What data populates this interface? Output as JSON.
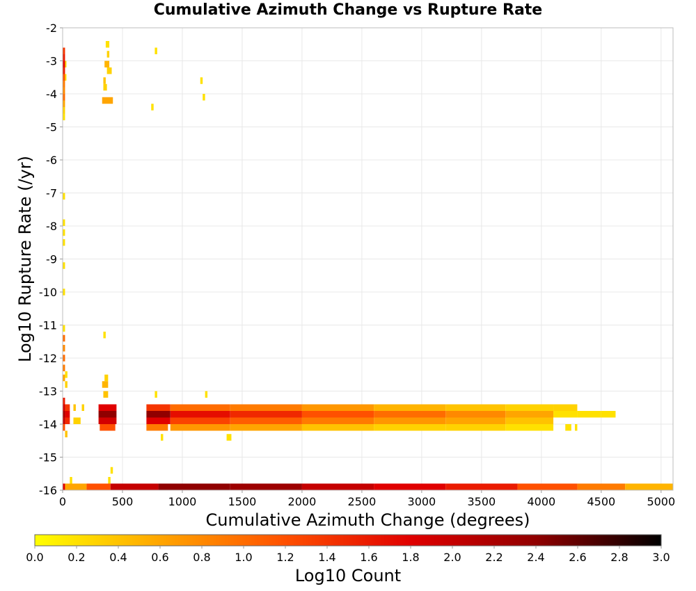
{
  "chart_data": {
    "type": "heatmap",
    "title": "Cumulative Azimuth Change vs Rupture Rate",
    "xlabel": "Cumulative Azimuth Change (degrees)",
    "ylabel": "Log10 Rupture Rate (/yr)",
    "xlim": [
      0,
      5100
    ],
    "ylim": [
      -16,
      -2
    ],
    "x_ticks": [
      "0",
      "500",
      "1000",
      "1500",
      "2000",
      "2500",
      "3000",
      "3500",
      "4000",
      "4500",
      "5000"
    ],
    "y_ticks": [
      "-2",
      "-3",
      "-4",
      "-5",
      "-6",
      "-7",
      "-8",
      "-9",
      "-10",
      "-11",
      "-12",
      "-13",
      "-14",
      "-15",
      "-16"
    ],
    "grid": true,
    "colorbar": {
      "label": "Log10 Count",
      "range": [
        0.0,
        3.0
      ],
      "ticks": [
        "0.0",
        "0.2",
        "0.4",
        "0.6",
        "0.8",
        "1.0",
        "1.2",
        "1.4",
        "1.6",
        "1.8",
        "2.0",
        "2.2",
        "2.4",
        "2.6",
        "2.8",
        "3.0"
      ],
      "colors": [
        "#ffff00",
        "#ffa500",
        "#ff5000",
        "#e00000",
        "#900000",
        "#000000"
      ]
    },
    "bin_width_deg": 10,
    "bin_height_log": 0.1,
    "note_cells": "cells are [x_start_deg, x_end_deg, log_rate_bin_center, log10_count]",
    "cells": [
      [
        0,
        20,
        -2.7,
        1.4
      ],
      [
        0,
        20,
        -2.9,
        1.6
      ],
      [
        0,
        20,
        -3.1,
        1.8
      ],
      [
        0,
        20,
        -3.3,
        1.6
      ],
      [
        0,
        20,
        -3.5,
        1.2
      ],
      [
        0,
        20,
        -3.7,
        0.9
      ],
      [
        0,
        20,
        -3.9,
        0.8
      ],
      [
        0,
        20,
        -4.1,
        1.0
      ],
      [
        0,
        20,
        -4.3,
        0.6
      ],
      [
        0,
        20,
        -4.5,
        0.3
      ],
      [
        0,
        20,
        -4.7,
        0.2
      ],
      [
        20,
        30,
        -3.1,
        0.3
      ],
      [
        20,
        30,
        -3.5,
        0.2
      ],
      [
        360,
        390,
        -2.5,
        0.2
      ],
      [
        370,
        390,
        -2.8,
        0.3
      ],
      [
        350,
        390,
        -3.1,
        0.5
      ],
      [
        370,
        410,
        -3.3,
        0.3
      ],
      [
        340,
        360,
        -3.6,
        0.4
      ],
      [
        340,
        370,
        -3.8,
        0.3
      ],
      [
        330,
        420,
        -4.2,
        0.6
      ],
      [
        770,
        790,
        -2.7,
        0.2
      ],
      [
        1150,
        1170,
        -3.6,
        0.2
      ],
      [
        1170,
        1190,
        -4.1,
        0.2
      ],
      [
        740,
        760,
        -4.4,
        0.2
      ],
      [
        0,
        20,
        -7.1,
        0.2
      ],
      [
        0,
        20,
        -7.9,
        0.2
      ],
      [
        0,
        20,
        -8.2,
        0.2
      ],
      [
        0,
        20,
        -8.5,
        0.2
      ],
      [
        0,
        20,
        -9.2,
        0.2
      ],
      [
        0,
        20,
        -10.0,
        0.2
      ],
      [
        0,
        20,
        -11.1,
        0.2
      ],
      [
        0,
        20,
        -11.4,
        1.0
      ],
      [
        0,
        20,
        -11.7,
        0.8
      ],
      [
        0,
        20,
        -12.0,
        1.0
      ],
      [
        0,
        20,
        -12.3,
        0.9
      ],
      [
        0,
        20,
        -12.6,
        0.6
      ],
      [
        20,
        40,
        -12.5,
        0.2
      ],
      [
        20,
        40,
        -12.8,
        0.3
      ],
      [
        340,
        360,
        -11.3,
        0.2
      ],
      [
        350,
        380,
        -12.6,
        0.3
      ],
      [
        330,
        380,
        -12.8,
        0.5
      ],
      [
        340,
        380,
        -13.1,
        0.4
      ],
      [
        770,
        790,
        -13.1,
        0.2
      ],
      [
        1190,
        1210,
        -13.1,
        0.2
      ],
      [
        0,
        20,
        -13.3,
        1.6
      ],
      [
        0,
        20,
        -13.5,
        1.9
      ],
      [
        0,
        20,
        -13.7,
        2.2
      ],
      [
        0,
        20,
        -13.9,
        2.0
      ],
      [
        0,
        20,
        -14.1,
        1.2
      ],
      [
        20,
        40,
        -14.3,
        0.4
      ],
      [
        20,
        60,
        -13.5,
        1.4
      ],
      [
        20,
        60,
        -13.7,
        1.8
      ],
      [
        20,
        60,
        -13.9,
        1.5
      ],
      [
        90,
        110,
        -13.5,
        0.4
      ],
      [
        160,
        180,
        -13.5,
        0.3
      ],
      [
        90,
        150,
        -13.9,
        0.3
      ],
      [
        300,
        450,
        -13.5,
        1.8
      ],
      [
        300,
        450,
        -13.7,
        2.4
      ],
      [
        300,
        450,
        -13.9,
        1.9
      ],
      [
        310,
        440,
        -14.1,
        1.2
      ],
      [
        700,
        900,
        -13.5,
        1.4
      ],
      [
        700,
        900,
        -13.7,
        2.4
      ],
      [
        700,
        900,
        -13.9,
        1.8
      ],
      [
        700,
        880,
        -14.1,
        0.9
      ],
      [
        820,
        840,
        -14.4,
        0.2
      ],
      [
        900,
        1400,
        -13.5,
        1.0
      ],
      [
        900,
        1400,
        -13.7,
        1.7
      ],
      [
        900,
        1400,
        -13.9,
        1.3
      ],
      [
        900,
        1400,
        -14.1,
        0.7
      ],
      [
        1370,
        1410,
        -14.4,
        0.2
      ],
      [
        1400,
        2000,
        -13.5,
        0.9
      ],
      [
        1400,
        2000,
        -13.7,
        1.5
      ],
      [
        1400,
        2000,
        -13.9,
        1.1
      ],
      [
        1400,
        2000,
        -14.1,
        0.6
      ],
      [
        2000,
        2600,
        -13.5,
        0.7
      ],
      [
        2000,
        2600,
        -13.7,
        1.2
      ],
      [
        2000,
        2600,
        -13.9,
        0.9
      ],
      [
        2000,
        2600,
        -14.1,
        0.4
      ],
      [
        2600,
        3200,
        -13.5,
        0.5
      ],
      [
        2600,
        3200,
        -13.7,
        1.0
      ],
      [
        2600,
        3200,
        -13.9,
        0.7
      ],
      [
        2600,
        3200,
        -14.1,
        0.3
      ],
      [
        3200,
        3700,
        -13.5,
        0.4
      ],
      [
        3200,
        3700,
        -13.7,
        0.8
      ],
      [
        3200,
        3700,
        -13.9,
        0.6
      ],
      [
        3200,
        3700,
        -14.1,
        0.3
      ],
      [
        3700,
        4100,
        -13.5,
        0.3
      ],
      [
        3700,
        4100,
        -13.7,
        0.6
      ],
      [
        3700,
        4100,
        -13.9,
        0.4
      ],
      [
        3700,
        4100,
        -14.1,
        0.2
      ],
      [
        4100,
        4300,
        -13.5,
        0.3
      ],
      [
        4100,
        4300,
        -13.7,
        0.2
      ],
      [
        4200,
        4250,
        -14.1,
        0.2
      ],
      [
        4300,
        4500,
        -13.7,
        0.2
      ],
      [
        4500,
        4620,
        -13.7,
        0.2
      ],
      [
        4280,
        4300,
        -14.1,
        0.2
      ],
      [
        400,
        420,
        -15.4,
        0.2
      ],
      [
        380,
        400,
        -15.7,
        0.2
      ],
      [
        60,
        80,
        -15.7,
        0.2
      ],
      [
        50,
        70,
        -15.9,
        0.3
      ],
      [
        0,
        20,
        -15.9,
        1.8
      ],
      [
        20,
        200,
        -15.9,
        0.6
      ],
      [
        200,
        400,
        -15.9,
        1.2
      ],
      [
        400,
        800,
        -15.9,
        2.0
      ],
      [
        800,
        1400,
        -15.9,
        2.4
      ],
      [
        1400,
        2000,
        -15.9,
        2.3
      ],
      [
        2000,
        2600,
        -15.9,
        2.0
      ],
      [
        2600,
        3200,
        -15.9,
        1.8
      ],
      [
        3200,
        3800,
        -15.9,
        1.6
      ],
      [
        3800,
        4300,
        -15.9,
        1.2
      ],
      [
        4300,
        4700,
        -15.9,
        0.9
      ],
      [
        4700,
        5100,
        -15.9,
        0.5
      ]
    ]
  }
}
